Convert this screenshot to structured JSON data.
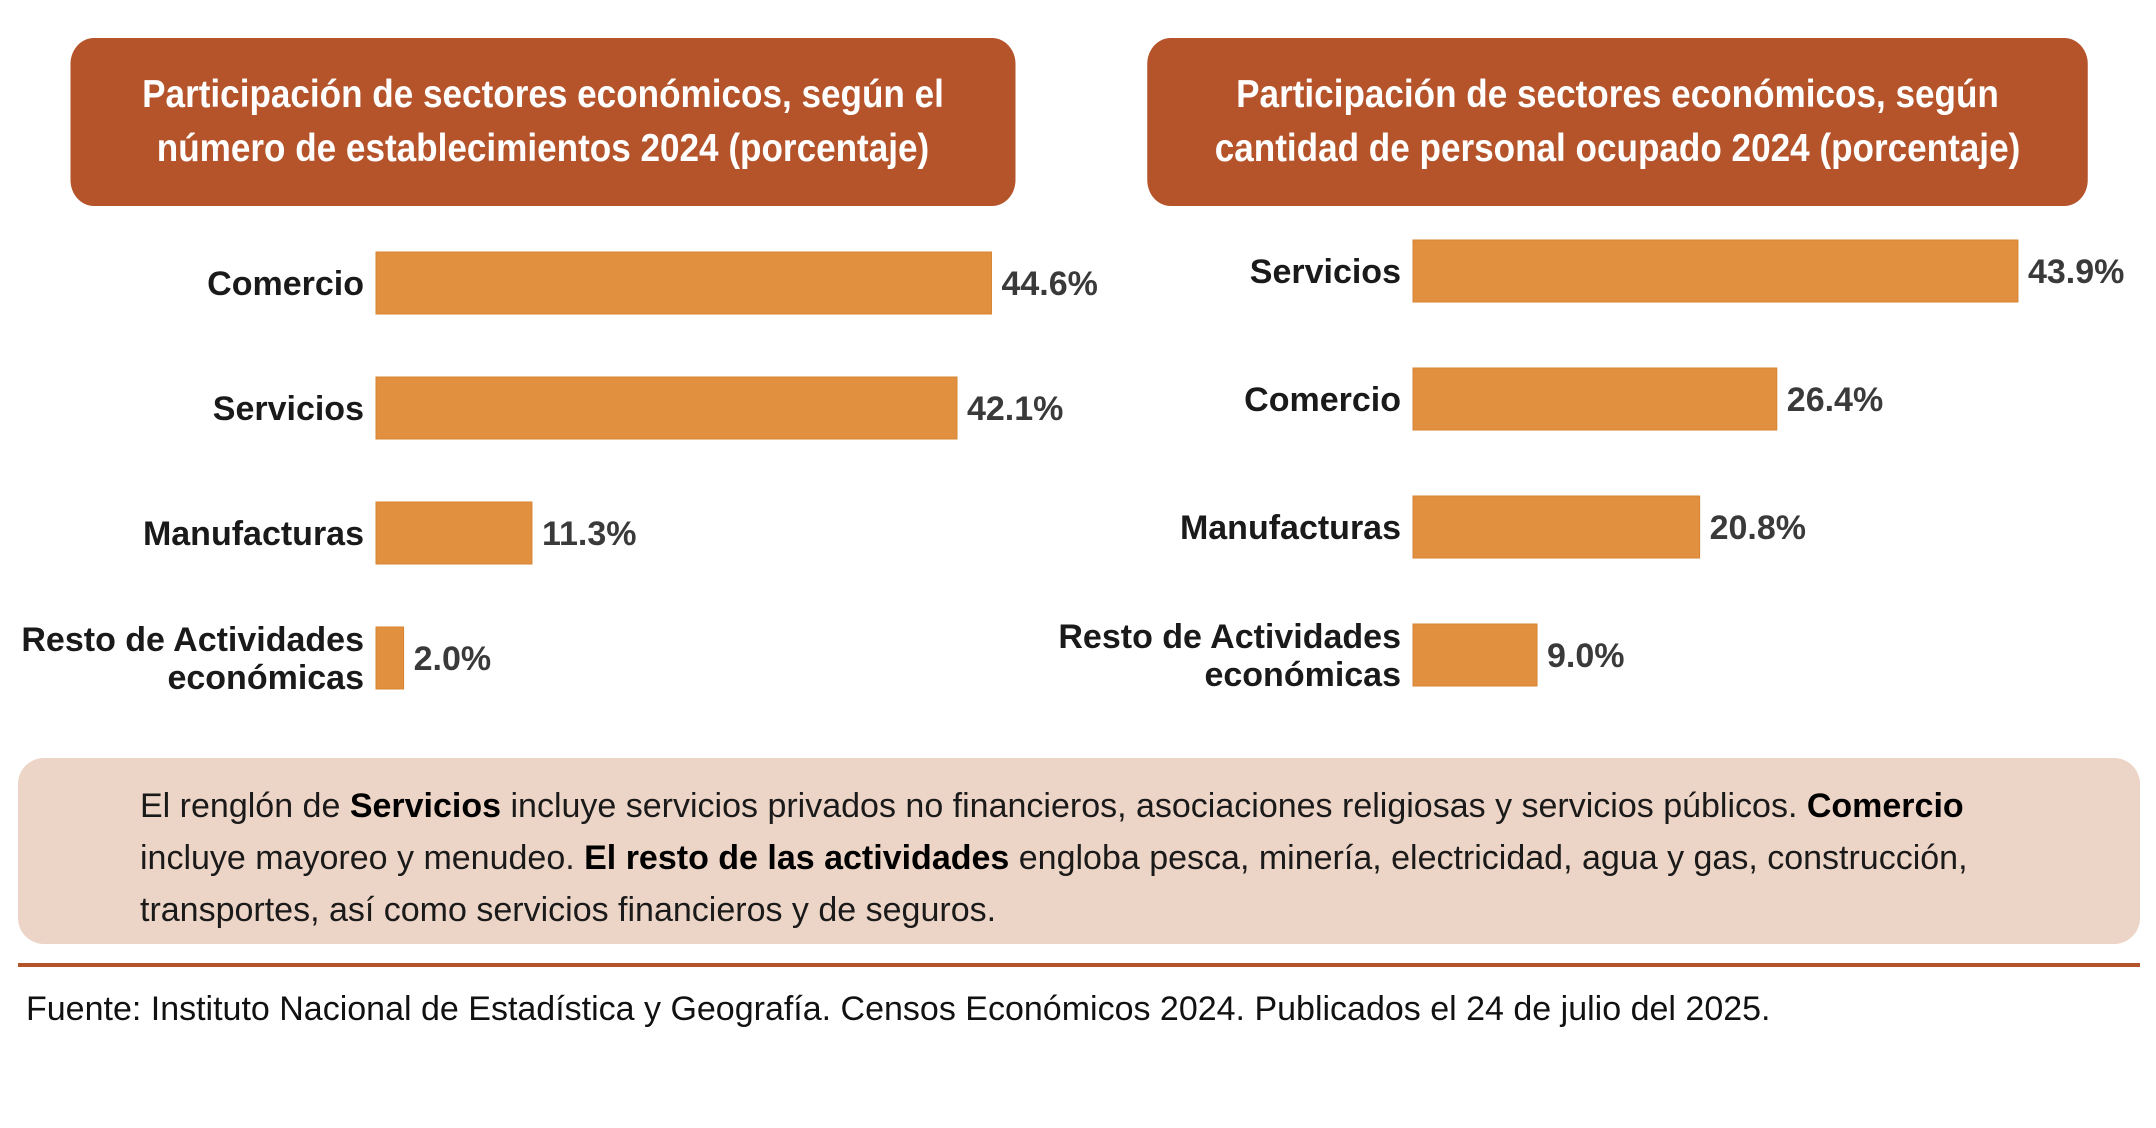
{
  "panels": {
    "left": {
      "title_line1": "Participación de sectores económicos, según el",
      "title_line2": "número de establecimientos 2024 (porcentaje)"
    },
    "right": {
      "title_line1": "Participación de sectores económicos, según",
      "title_line2": "cantidad de personal ocupado 2024 (porcentaje)"
    }
  },
  "chart_data": [
    {
      "type": "bar",
      "orientation": "horizontal",
      "title": "Participación de sectores económicos, según el número de establecimientos 2024 (porcentaje)",
      "categories": [
        [
          "Comercio"
        ],
        [
          "Servicios"
        ],
        [
          "Manufacturas"
        ],
        [
          "Resto de Actividades",
          "económicas"
        ]
      ],
      "values": [
        44.6,
        42.1,
        11.3,
        2.0
      ],
      "value_labels": [
        "44.6%",
        "42.1%",
        "11.3%",
        "2.0%"
      ],
      "xlim": [
        0,
        50
      ],
      "color": "#e0903f"
    },
    {
      "type": "bar",
      "orientation": "horizontal",
      "title": "Participación de sectores económicos, según cantidad de personal ocupado 2024 (porcentaje)",
      "categories": [
        [
          "Servicios"
        ],
        [
          "Comercio"
        ],
        [
          "Manufacturas"
        ],
        [
          "Resto de Actividades",
          "económicas"
        ]
      ],
      "values": [
        43.9,
        26.4,
        20.8,
        9.0
      ],
      "value_labels": [
        "43.9%",
        "26.4%",
        "20.8%",
        "9.0%"
      ],
      "xlim": [
        0,
        50
      ],
      "color": "#e0903f"
    }
  ],
  "note": {
    "t1": "El renglón de ",
    "b1": "Servicios",
    "t2": " incluye servicios privados no financieros, asociaciones religiosas y servicios públicos. ",
    "b2": "Comercio",
    "t3": " incluye mayoreo y menudeo. ",
    "b3": "El resto de las actividades",
    "t4": " engloba pesca, minería, electricidad, agua y gas, construcción, transportes, así como servicios financieros y de seguros."
  },
  "source": "Fuente: Instituto Nacional de Estadística y Geografía. Censos Económicos 2024. Publicados el 24 de julio del 2025."
}
